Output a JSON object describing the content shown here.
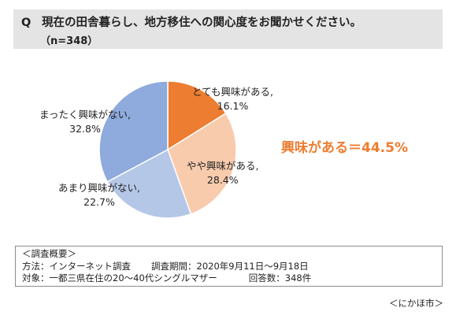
{
  "question": {
    "mark": "Q",
    "text": "現在の田舎暮らし、地方移住への関心度をお聞かせください。",
    "n": "（n=348）"
  },
  "chart_data": {
    "type": "pie",
    "slices": [
      {
        "label": "とても興味がある,",
        "pct_label": "16.1%",
        "value": 16.1,
        "color": "#ed7d31"
      },
      {
        "label": "やや興味がある,",
        "pct_label": "28.4%",
        "value": 28.4,
        "color": "#f8cbad"
      },
      {
        "label": "あまり興味がない,",
        "pct_label": "22.7%",
        "value": 22.7,
        "color": "#b4c7e7"
      },
      {
        "label": "まったく興味がない,",
        "pct_label": "32.8%",
        "value": 32.8,
        "color": "#8faadc"
      }
    ],
    "start": "12 o'clock",
    "direction": "clockwise",
    "annotation": "興味がある＝44.5%"
  },
  "overview": {
    "title": "＜調査概要＞",
    "method_label": "方法：インターネット調査",
    "period_label": "調査期間：2020年9月11日～9月18日",
    "target_label": "対象：一都三県在住の20～40代シングルマザー",
    "responses_label": "回答数：348件"
  },
  "source": "＜にかほ市＞"
}
